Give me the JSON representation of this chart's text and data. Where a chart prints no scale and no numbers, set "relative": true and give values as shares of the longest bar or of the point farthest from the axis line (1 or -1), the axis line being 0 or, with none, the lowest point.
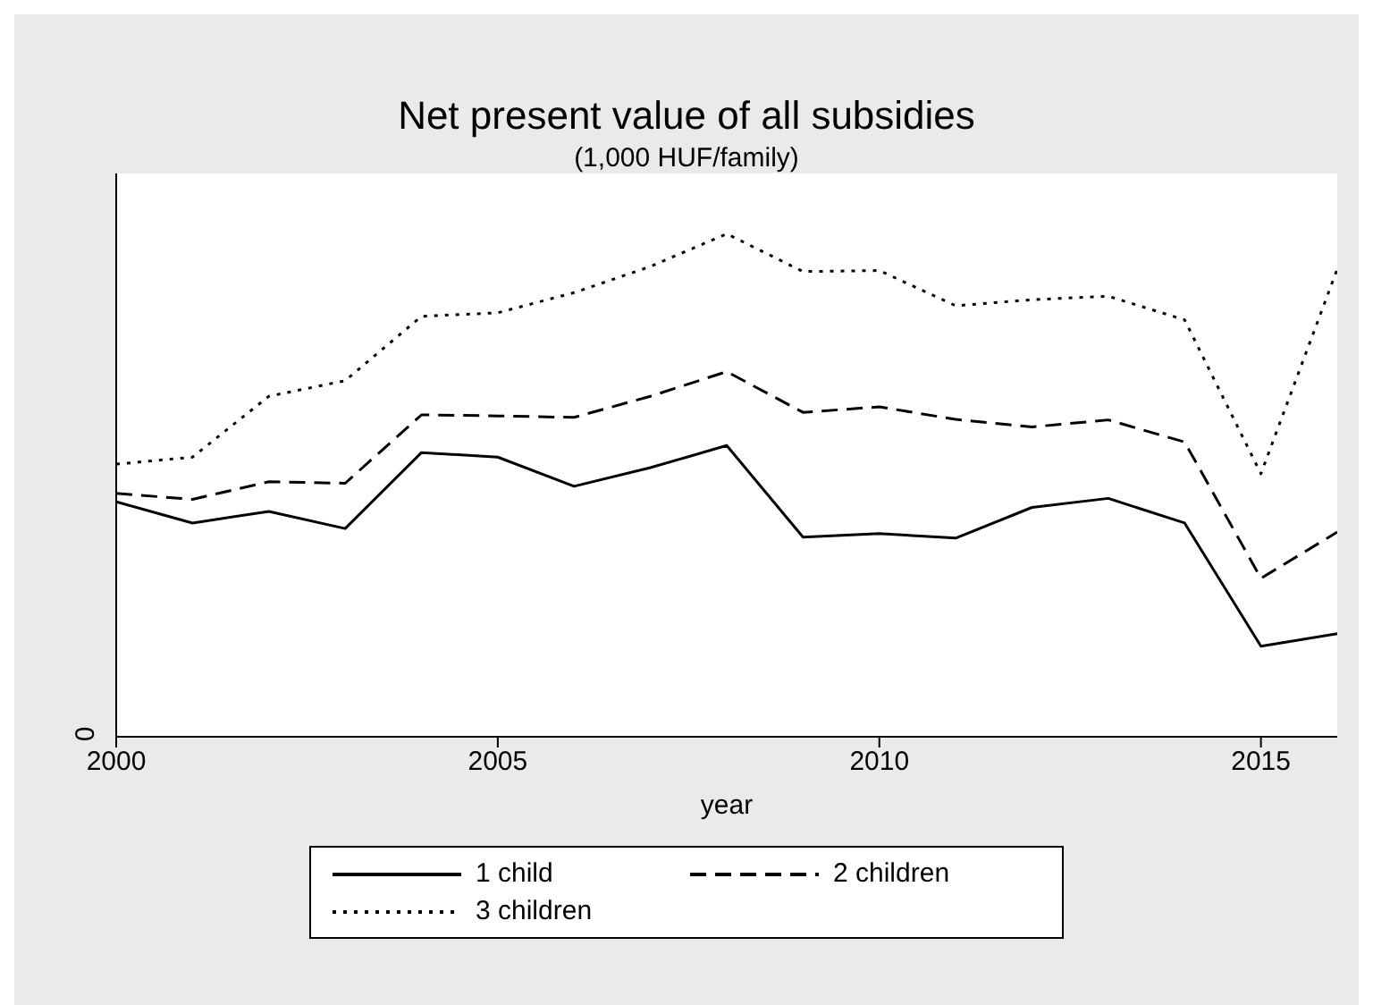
{
  "chart_data": {
    "type": "line",
    "title": "Net present value of all subsidies",
    "subtitle": "(1,000 HUF/family)",
    "xlabel": "year",
    "relative": true,
    "x": [
      2000,
      2001,
      2002,
      2003,
      2004,
      2005,
      2006,
      2007,
      2008,
      2009,
      2010,
      2011,
      2012,
      2013,
      2014,
      2015,
      2016
    ],
    "xlim": [
      2000,
      2016
    ],
    "xticks": [
      2000,
      2005,
      2010,
      2015
    ],
    "annotations": [
      "0"
    ],
    "legend": "bottom",
    "marker": "none",
    "series": [
      {
        "name": "1 child",
        "color": "#000000",
        "line_style": "solid",
        "values": [
          0.467,
          0.425,
          0.448,
          0.414,
          0.565,
          0.556,
          0.498,
          0.535,
          0.579,
          0.397,
          0.404,
          0.395,
          0.456,
          0.474,
          0.425,
          0.18,
          0.205
        ]
      },
      {
        "name": "2 children",
        "color": "#000000",
        "line_style": "dashed",
        "values": [
          0.484,
          0.472,
          0.507,
          0.504,
          0.64,
          0.638,
          0.635,
          0.677,
          0.726,
          0.645,
          0.656,
          0.631,
          0.616,
          0.63,
          0.586,
          0.315,
          0.407
        ]
      },
      {
        "name": "3 children",
        "color": "#000000",
        "line_style": "dotted",
        "values": [
          0.542,
          0.556,
          0.677,
          0.708,
          0.836,
          0.843,
          0.883,
          0.935,
          1,
          0.925,
          0.927,
          0.857,
          0.869,
          0.876,
          0.829,
          0.523,
          0.93
        ]
      }
    ]
  }
}
